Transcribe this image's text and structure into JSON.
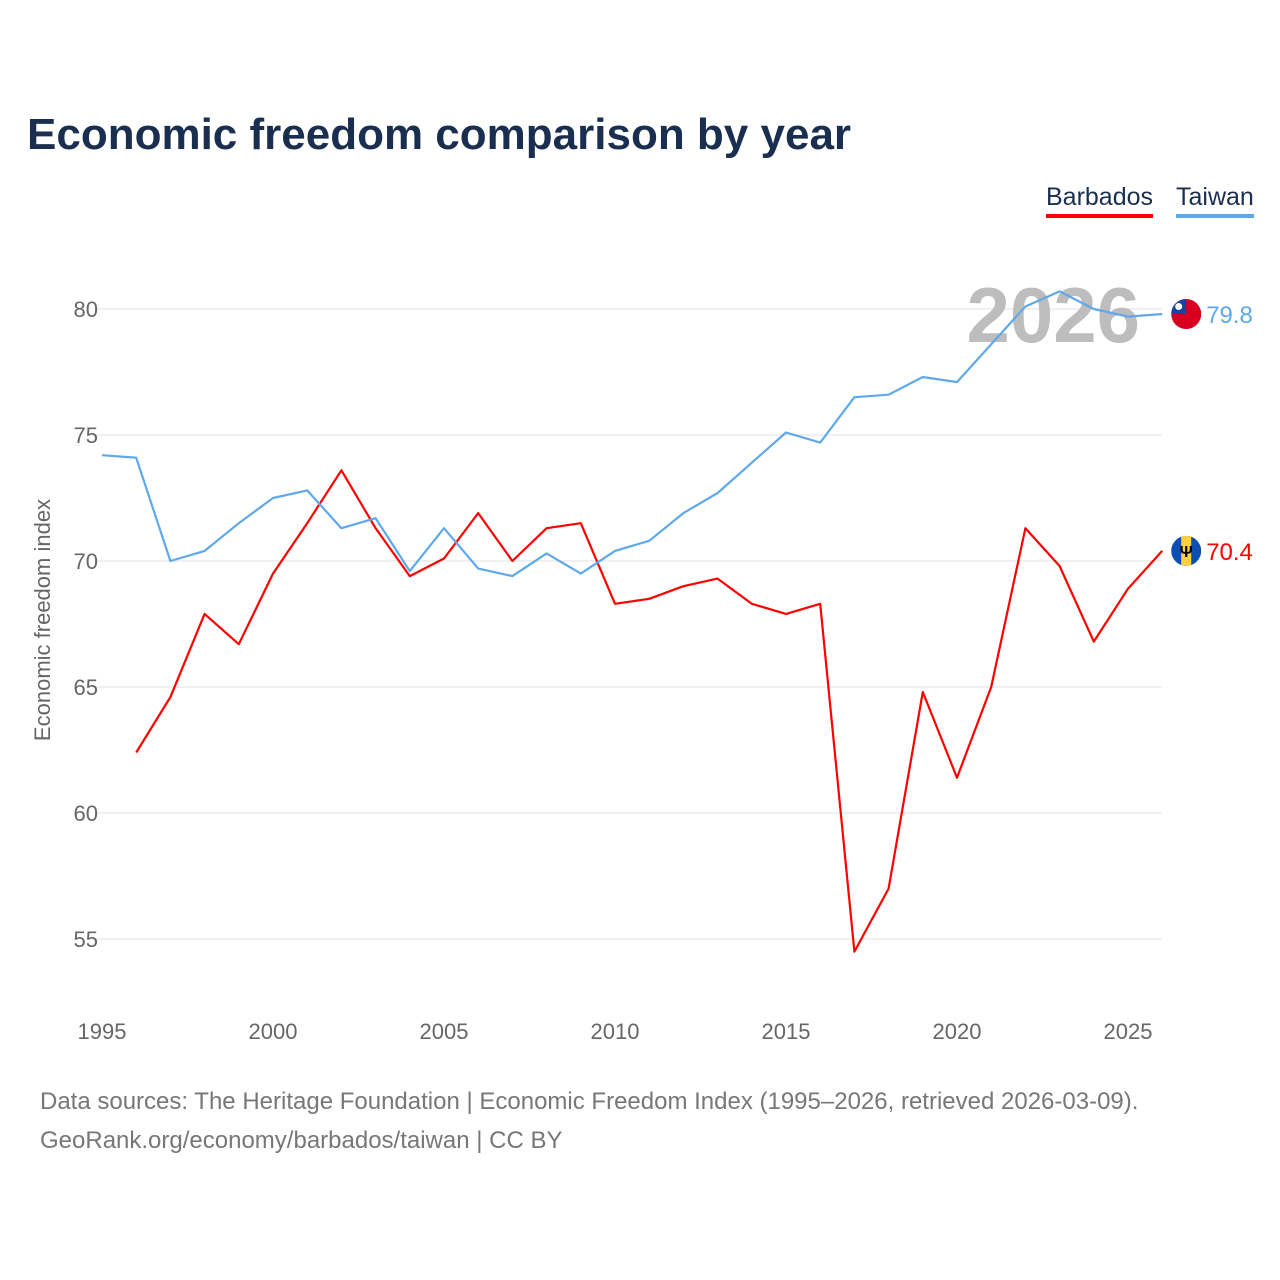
{
  "chart_data": {
    "type": "line",
    "title": "Economic freedom comparison by year",
    "ylabel": "Economic freedom index",
    "xlabel": "",
    "xlim": [
      1995,
      2026
    ],
    "ylim": [
      53,
      82
    ],
    "grid": true,
    "legend_placement": "top-right",
    "watermark_year": "2026",
    "x_ticks": [
      "1995",
      "2000",
      "2005",
      "2010",
      "2015",
      "2020",
      "2025"
    ],
    "y_ticks": [
      "80",
      "75",
      "70",
      "65",
      "60",
      "55"
    ],
    "series": [
      {
        "name": "Barbados",
        "color": "#ff0000",
        "flag": "barbados-flag",
        "end_label": "70.4",
        "x": [
          1996,
          1997,
          1998,
          1999,
          2000,
          2001,
          2002,
          2003,
          2004,
          2005,
          2006,
          2007,
          2008,
          2009,
          2010,
          2011,
          2012,
          2013,
          2014,
          2015,
          2016,
          2017,
          2018,
          2019,
          2020,
          2021,
          2022,
          2023,
          2024,
          2025,
          2026
        ],
        "values": [
          62.4,
          64.6,
          67.9,
          66.7,
          69.5,
          71.5,
          73.6,
          71.3,
          69.4,
          70.1,
          71.9,
          70.0,
          71.3,
          71.5,
          68.3,
          68.5,
          69.0,
          69.3,
          68.3,
          67.9,
          68.3,
          54.5,
          57.0,
          64.8,
          61.4,
          65.0,
          71.3,
          69.8,
          66.8,
          68.9,
          70.4
        ]
      },
      {
        "name": "Taiwan",
        "color": "#5ea8ec",
        "flag": "taiwan-flag",
        "end_label": "79.8",
        "x": [
          1995,
          1996,
          1997,
          1998,
          1999,
          2000,
          2001,
          2002,
          2003,
          2004,
          2005,
          2006,
          2007,
          2008,
          2009,
          2010,
          2011,
          2012,
          2013,
          2014,
          2015,
          2016,
          2017,
          2018,
          2019,
          2020,
          2021,
          2022,
          2023,
          2024,
          2025,
          2026
        ],
        "values": [
          74.2,
          74.1,
          70.0,
          70.4,
          71.5,
          72.5,
          72.8,
          71.3,
          71.7,
          69.6,
          71.3,
          69.7,
          69.4,
          70.3,
          69.5,
          70.4,
          70.8,
          71.9,
          72.7,
          73.9,
          75.1,
          74.7,
          76.5,
          76.6,
          77.3,
          77.1,
          78.6,
          80.1,
          80.7,
          80.0,
          79.7,
          79.8
        ]
      }
    ]
  },
  "footer": {
    "line1": "Data sources: The Heritage Foundation | Economic Freedom Index (1995–2026, retrieved 2026-03-09).",
    "line2": "GeoRank.org/economy/barbados/taiwan | CC BY"
  }
}
